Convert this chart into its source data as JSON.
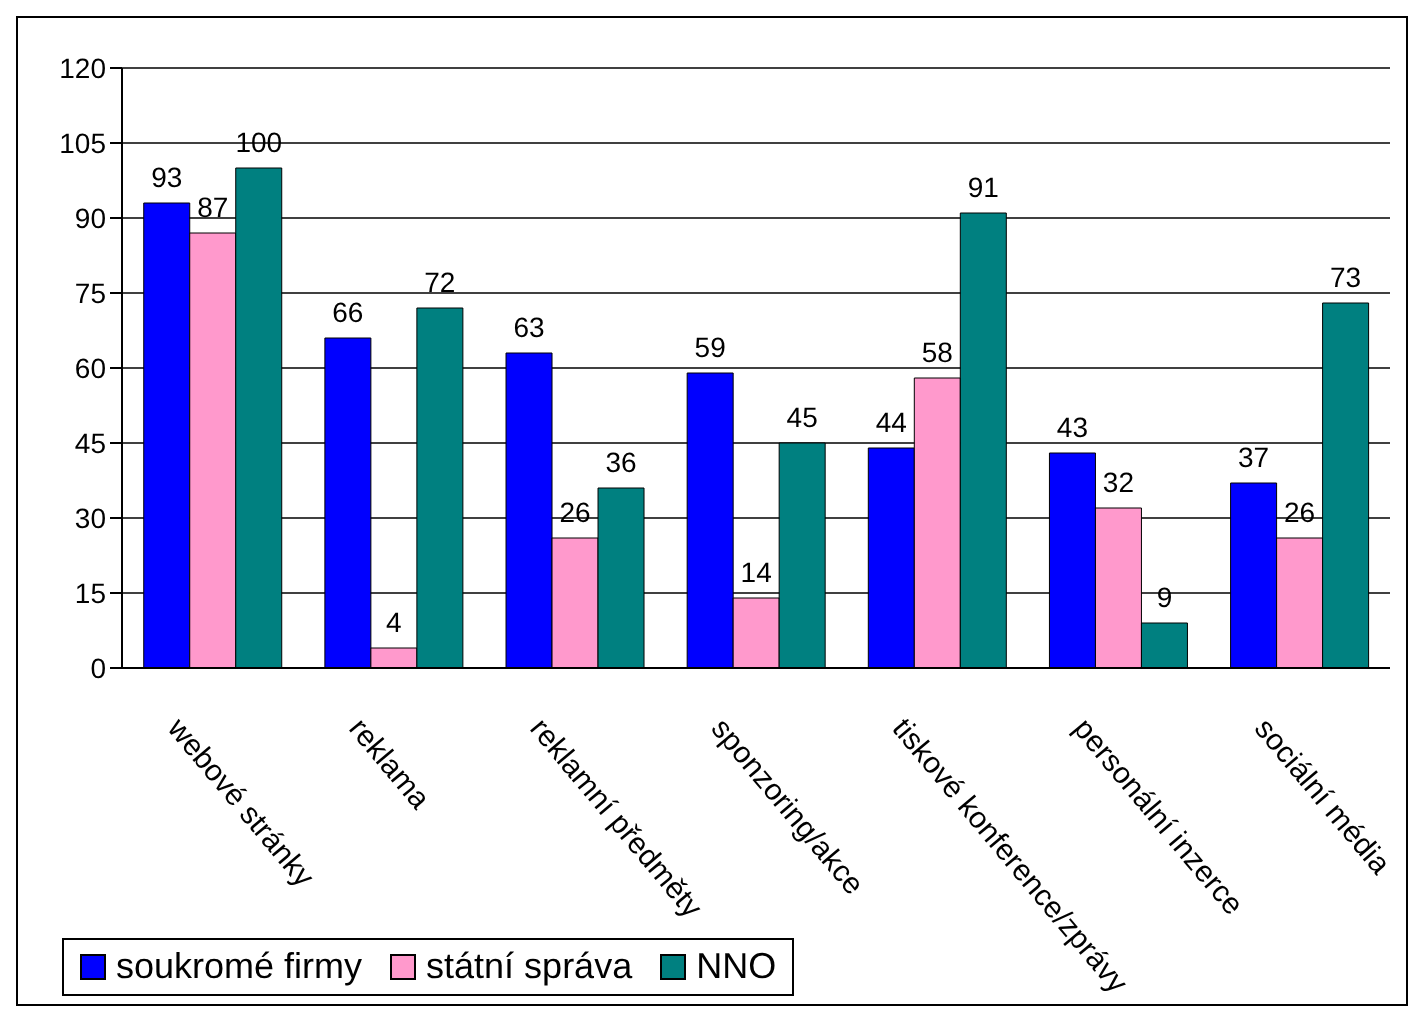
{
  "chart_data": {
    "type": "bar",
    "categories": [
      "webové stránky",
      "reklama",
      "reklamní předměty",
      "sponzoring/akce",
      "tiskové konference/zprávy",
      "personální inzerce",
      "sociální média"
    ],
    "series": [
      {
        "name": "soukromé firmy",
        "color": "#0000ff",
        "values": [
          93,
          66,
          63,
          59,
          44,
          43,
          37
        ]
      },
      {
        "name": "státní správa",
        "color": "#ff99cc",
        "values": [
          87,
          4,
          26,
          14,
          58,
          32,
          26
        ]
      },
      {
        "name": "NNO",
        "color": "#008080",
        "values": [
          100,
          72,
          36,
          45,
          91,
          9,
          73
        ]
      }
    ],
    "ylim": [
      0,
      120
    ],
    "yticks": [
      0,
      15,
      30,
      45,
      60,
      75,
      90,
      105,
      120
    ],
    "grid": "y",
    "legend": "bottom left",
    "data_labels": true
  }
}
